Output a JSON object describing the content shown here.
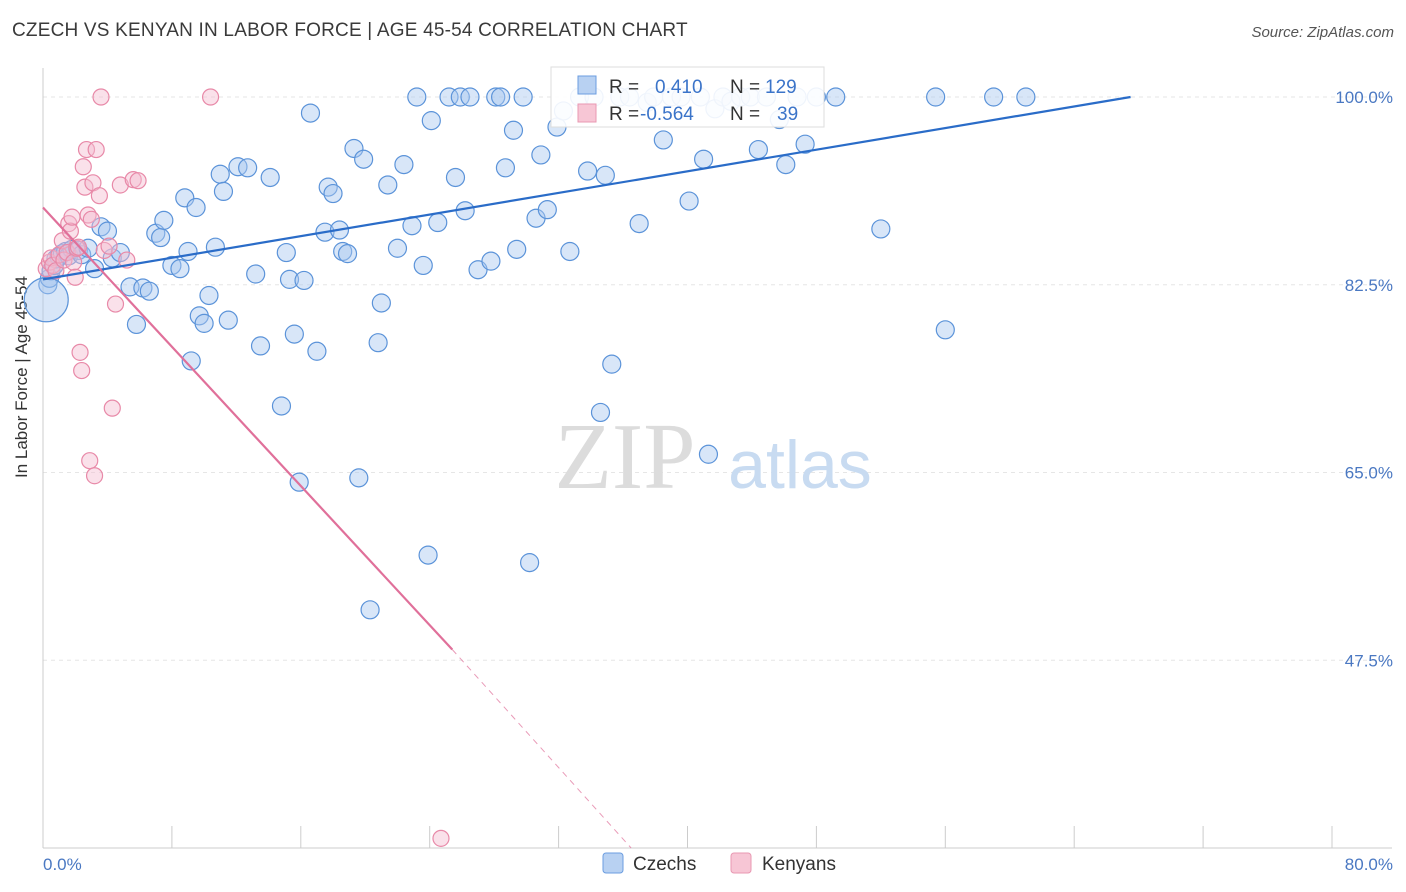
{
  "title": "CZECH VS KENYAN IN LABOR FORCE | AGE 45-54 CORRELATION CHART",
  "source": "Source: ZipAtlas.com",
  "watermark": {
    "zip": "ZIP",
    "atlas": "atlas"
  },
  "colors": {
    "czech": "#5b93d9",
    "kenyan": "#e889a8",
    "czech_line": "#2a6cc8",
    "kenyan_line": "#e0709a",
    "tick": "#4a78c2"
  },
  "stats": {
    "czech": {
      "r_label": "R =",
      "r": "0.410",
      "n_label": "N =",
      "n": "129"
    },
    "kenyan": {
      "r_label": "R =",
      "r": "-0.564",
      "n_label": "N =",
      "n": "39"
    }
  },
  "chart_data": {
    "type": "scatter",
    "title": "CZECH VS KENYAN IN LABOR FORCE | AGE 45-54 CORRELATION CHART",
    "xlabel": "",
    "ylabel": "In Labor Force | Age 45-54",
    "xlim": [
      0,
      80
    ],
    "ylim": [
      30,
      100
    ],
    "x_tick_labels": [
      "0.0%",
      "80.0%"
    ],
    "y_ticks": [
      47.5,
      65.0,
      82.5,
      100.0
    ],
    "y_tick_labels": [
      "47.5%",
      "65.0%",
      "82.5%",
      "100.0%"
    ],
    "grid": true,
    "legend_position": "bottom",
    "series": [
      {
        "name": "Czechs",
        "trend": {
          "x": [
            0,
            67.5
          ],
          "y": [
            83.0,
            100.0
          ]
        },
        "points": [
          [
            0.3,
            82.5
          ],
          [
            0.4,
            83.1
          ],
          [
            0.5,
            83.8
          ],
          [
            0.7,
            84.3
          ],
          [
            0.8,
            84.9
          ],
          [
            1.0,
            85.1
          ],
          [
            1.2,
            85.4
          ],
          [
            1.4,
            85.6
          ],
          [
            1.6,
            85.2
          ],
          [
            1.8,
            85.8
          ],
          [
            2.2,
            85.7
          ],
          [
            2.4,
            85.3
          ],
          [
            2.8,
            85.9
          ],
          [
            3.2,
            84.0
          ],
          [
            3.6,
            87.9
          ],
          [
            4.0,
            87.5
          ],
          [
            4.3,
            85.0
          ],
          [
            4.8,
            85.5
          ],
          [
            5.4,
            82.3
          ],
          [
            5.8,
            78.8
          ],
          [
            6.2,
            82.2
          ],
          [
            6.6,
            81.9
          ],
          [
            7.0,
            87.3
          ],
          [
            7.3,
            86.9
          ],
          [
            7.5,
            88.5
          ],
          [
            8.0,
            84.3
          ],
          [
            8.5,
            84.0
          ],
          [
            8.8,
            90.6
          ],
          [
            9.0,
            85.6
          ],
          [
            9.2,
            75.4
          ],
          [
            9.5,
            89.7
          ],
          [
            9.7,
            79.6
          ],
          [
            10.0,
            78.9
          ],
          [
            10.3,
            81.5
          ],
          [
            10.7,
            86.0
          ],
          [
            11.0,
            92.8
          ],
          [
            11.2,
            91.2
          ],
          [
            11.5,
            79.2
          ],
          [
            12.1,
            93.5
          ],
          [
            12.7,
            93.4
          ],
          [
            13.2,
            83.5
          ],
          [
            13.5,
            76.8
          ],
          [
            14.1,
            92.5
          ],
          [
            14.8,
            71.2
          ],
          [
            15.1,
            85.5
          ],
          [
            15.3,
            83.0
          ],
          [
            15.6,
            77.9
          ],
          [
            15.9,
            64.1
          ],
          [
            16.2,
            82.9
          ],
          [
            16.6,
            98.5
          ],
          [
            17.0,
            76.3
          ],
          [
            17.5,
            87.4
          ],
          [
            17.7,
            91.6
          ],
          [
            18.0,
            91.0
          ],
          [
            18.4,
            87.6
          ],
          [
            18.6,
            85.6
          ],
          [
            18.9,
            85.4
          ],
          [
            19.3,
            95.2
          ],
          [
            19.6,
            64.5
          ],
          [
            19.9,
            94.2
          ],
          [
            20.3,
            52.2
          ],
          [
            20.8,
            77.1
          ],
          [
            21.0,
            80.8
          ],
          [
            21.4,
            91.8
          ],
          [
            22.0,
            85.9
          ],
          [
            22.4,
            93.7
          ],
          [
            22.9,
            88.0
          ],
          [
            23.2,
            100.0
          ],
          [
            23.6,
            84.3
          ],
          [
            23.9,
            57.3
          ],
          [
            24.1,
            97.8
          ],
          [
            24.5,
            88.3
          ],
          [
            25.2,
            100.0
          ],
          [
            25.6,
            92.5
          ],
          [
            25.9,
            100.0
          ],
          [
            26.2,
            89.4
          ],
          [
            26.5,
            100.0
          ],
          [
            27.0,
            83.9
          ],
          [
            27.8,
            84.7
          ],
          [
            28.1,
            100.0
          ],
          [
            28.4,
            100.0
          ],
          [
            28.7,
            93.4
          ],
          [
            29.2,
            96.9
          ],
          [
            29.4,
            85.8
          ],
          [
            29.8,
            100.0
          ],
          [
            30.2,
            56.6
          ],
          [
            30.6,
            88.7
          ],
          [
            30.9,
            94.6
          ],
          [
            31.3,
            89.5
          ],
          [
            31.9,
            97.2
          ],
          [
            32.3,
            98.7
          ],
          [
            32.7,
            85.6
          ],
          [
            33.3,
            100.0
          ],
          [
            33.8,
            93.1
          ],
          [
            34.2,
            100.0
          ],
          [
            34.6,
            70.6
          ],
          [
            34.9,
            92.7
          ],
          [
            35.3,
            75.1
          ],
          [
            35.8,
            100.0
          ],
          [
            36.4,
            100.0
          ],
          [
            37.0,
            88.2
          ],
          [
            37.5,
            99.5
          ],
          [
            37.9,
            100.0
          ],
          [
            38.5,
            96.0
          ],
          [
            39.0,
            100.0
          ],
          [
            39.6,
            100.0
          ],
          [
            40.1,
            90.3
          ],
          [
            40.8,
            100.0
          ],
          [
            41.0,
            94.2
          ],
          [
            41.3,
            66.7
          ],
          [
            41.7,
            98.9
          ],
          [
            42.2,
            100.0
          ],
          [
            42.7,
            99.6
          ],
          [
            43.3,
            100.0
          ],
          [
            43.9,
            100.0
          ],
          [
            44.4,
            95.1
          ],
          [
            44.9,
            100.0
          ],
          [
            45.7,
            97.9
          ],
          [
            46.1,
            93.7
          ],
          [
            46.8,
            100.0
          ],
          [
            47.3,
            95.6
          ],
          [
            48.0,
            100.0
          ],
          [
            49.2,
            100.0
          ],
          [
            52.0,
            87.7
          ],
          [
            55.4,
            100.0
          ],
          [
            56.0,
            78.3
          ],
          [
            59.0,
            100.0
          ],
          [
            61.0,
            100.0
          ],
          [
            0.2,
            81.1
          ]
        ]
      },
      {
        "name": "Kenyans",
        "trend": {
          "x": [
            0,
            25.4
          ],
          "y": [
            89.7,
            48.5
          ]
        },
        "trend_dashed": {
          "x": [
            25.4,
            36.5
          ],
          "y": [
            48.5,
            30.0
          ]
        },
        "points": [
          [
            0.2,
            84.0
          ],
          [
            0.4,
            84.6
          ],
          [
            0.5,
            85.0
          ],
          [
            0.6,
            84.3
          ],
          [
            0.8,
            83.8
          ],
          [
            1.0,
            85.3
          ],
          [
            1.2,
            86.6
          ],
          [
            1.3,
            84.8
          ],
          [
            1.5,
            85.5
          ],
          [
            1.6,
            88.2
          ],
          [
            1.7,
            87.5
          ],
          [
            1.8,
            88.8
          ],
          [
            1.9,
            84.6
          ],
          [
            2.0,
            83.2
          ],
          [
            2.1,
            85.9
          ],
          [
            2.2,
            86.0
          ],
          [
            2.3,
            76.2
          ],
          [
            2.4,
            74.5
          ],
          [
            2.5,
            93.5
          ],
          [
            2.6,
            91.6
          ],
          [
            2.7,
            95.1
          ],
          [
            2.8,
            89.0
          ],
          [
            2.9,
            66.1
          ],
          [
            3.0,
            88.6
          ],
          [
            3.1,
            92.0
          ],
          [
            3.2,
            64.7
          ],
          [
            3.3,
            95.1
          ],
          [
            3.5,
            90.8
          ],
          [
            3.8,
            85.7
          ],
          [
            4.1,
            86.1
          ],
          [
            4.3,
            71.0
          ],
          [
            4.5,
            80.7
          ],
          [
            4.8,
            91.8
          ],
          [
            5.2,
            84.8
          ],
          [
            5.6,
            92.3
          ],
          [
            5.9,
            92.2
          ],
          [
            3.6,
            100.0
          ],
          [
            10.4,
            100.0
          ],
          [
            24.7,
            30.9
          ]
        ]
      }
    ]
  }
}
